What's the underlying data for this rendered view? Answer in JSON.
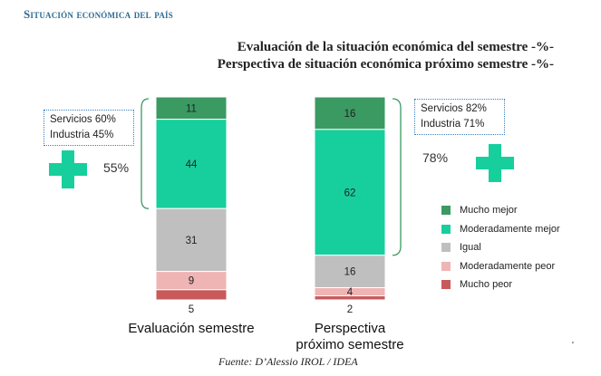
{
  "header": {
    "section_title": "Situación económica del país",
    "title_line1": "Evaluación de la situación económica del semestre -%-",
    "title_line2": "Perspectiva de situación económica próximo semestre -%-"
  },
  "annotations": {
    "left_box": [
      "Servicios 60%",
      "Industria 45%"
    ],
    "left_pct": "55%",
    "right_box": [
      "Servicios 82%",
      "Industria 71%"
    ],
    "right_pct": "78%"
  },
  "source": "Fuente: D’Alessio IROL / IDEA",
  "colors": {
    "mucho_mejor": "#3a9a62",
    "moderadamente_mejor": "#17cf9c",
    "igual": "#bfbfbf",
    "moderadamente_peor": "#efb4b4",
    "mucho_peor": "#c85a5a",
    "accent_green": "#17cf9c",
    "bracket": "#3a9a62"
  },
  "chart_data": {
    "type": "bar",
    "stacked": true,
    "categories": [
      "Evaluación semestre",
      "Perspectiva\npróximo semestre"
    ],
    "series": [
      {
        "name": "Mucho mejor",
        "values": [
          11,
          16
        ]
      },
      {
        "name": "Moderadamente mejor",
        "values": [
          44,
          62
        ]
      },
      {
        "name": "Igual",
        "values": [
          31,
          16
        ]
      },
      {
        "name": "Moderadamente peor",
        "values": [
          9,
          4
        ]
      },
      {
        "name": "Mucho peor",
        "values": [
          5,
          2
        ]
      }
    ],
    "labels": [
      [
        "11",
        "44",
        "31",
        "9",
        "5"
      ],
      [
        "16",
        "62",
        "16",
        "4",
        "2"
      ]
    ],
    "ylim": [
      0,
      100
    ],
    "legend_position": "right"
  }
}
